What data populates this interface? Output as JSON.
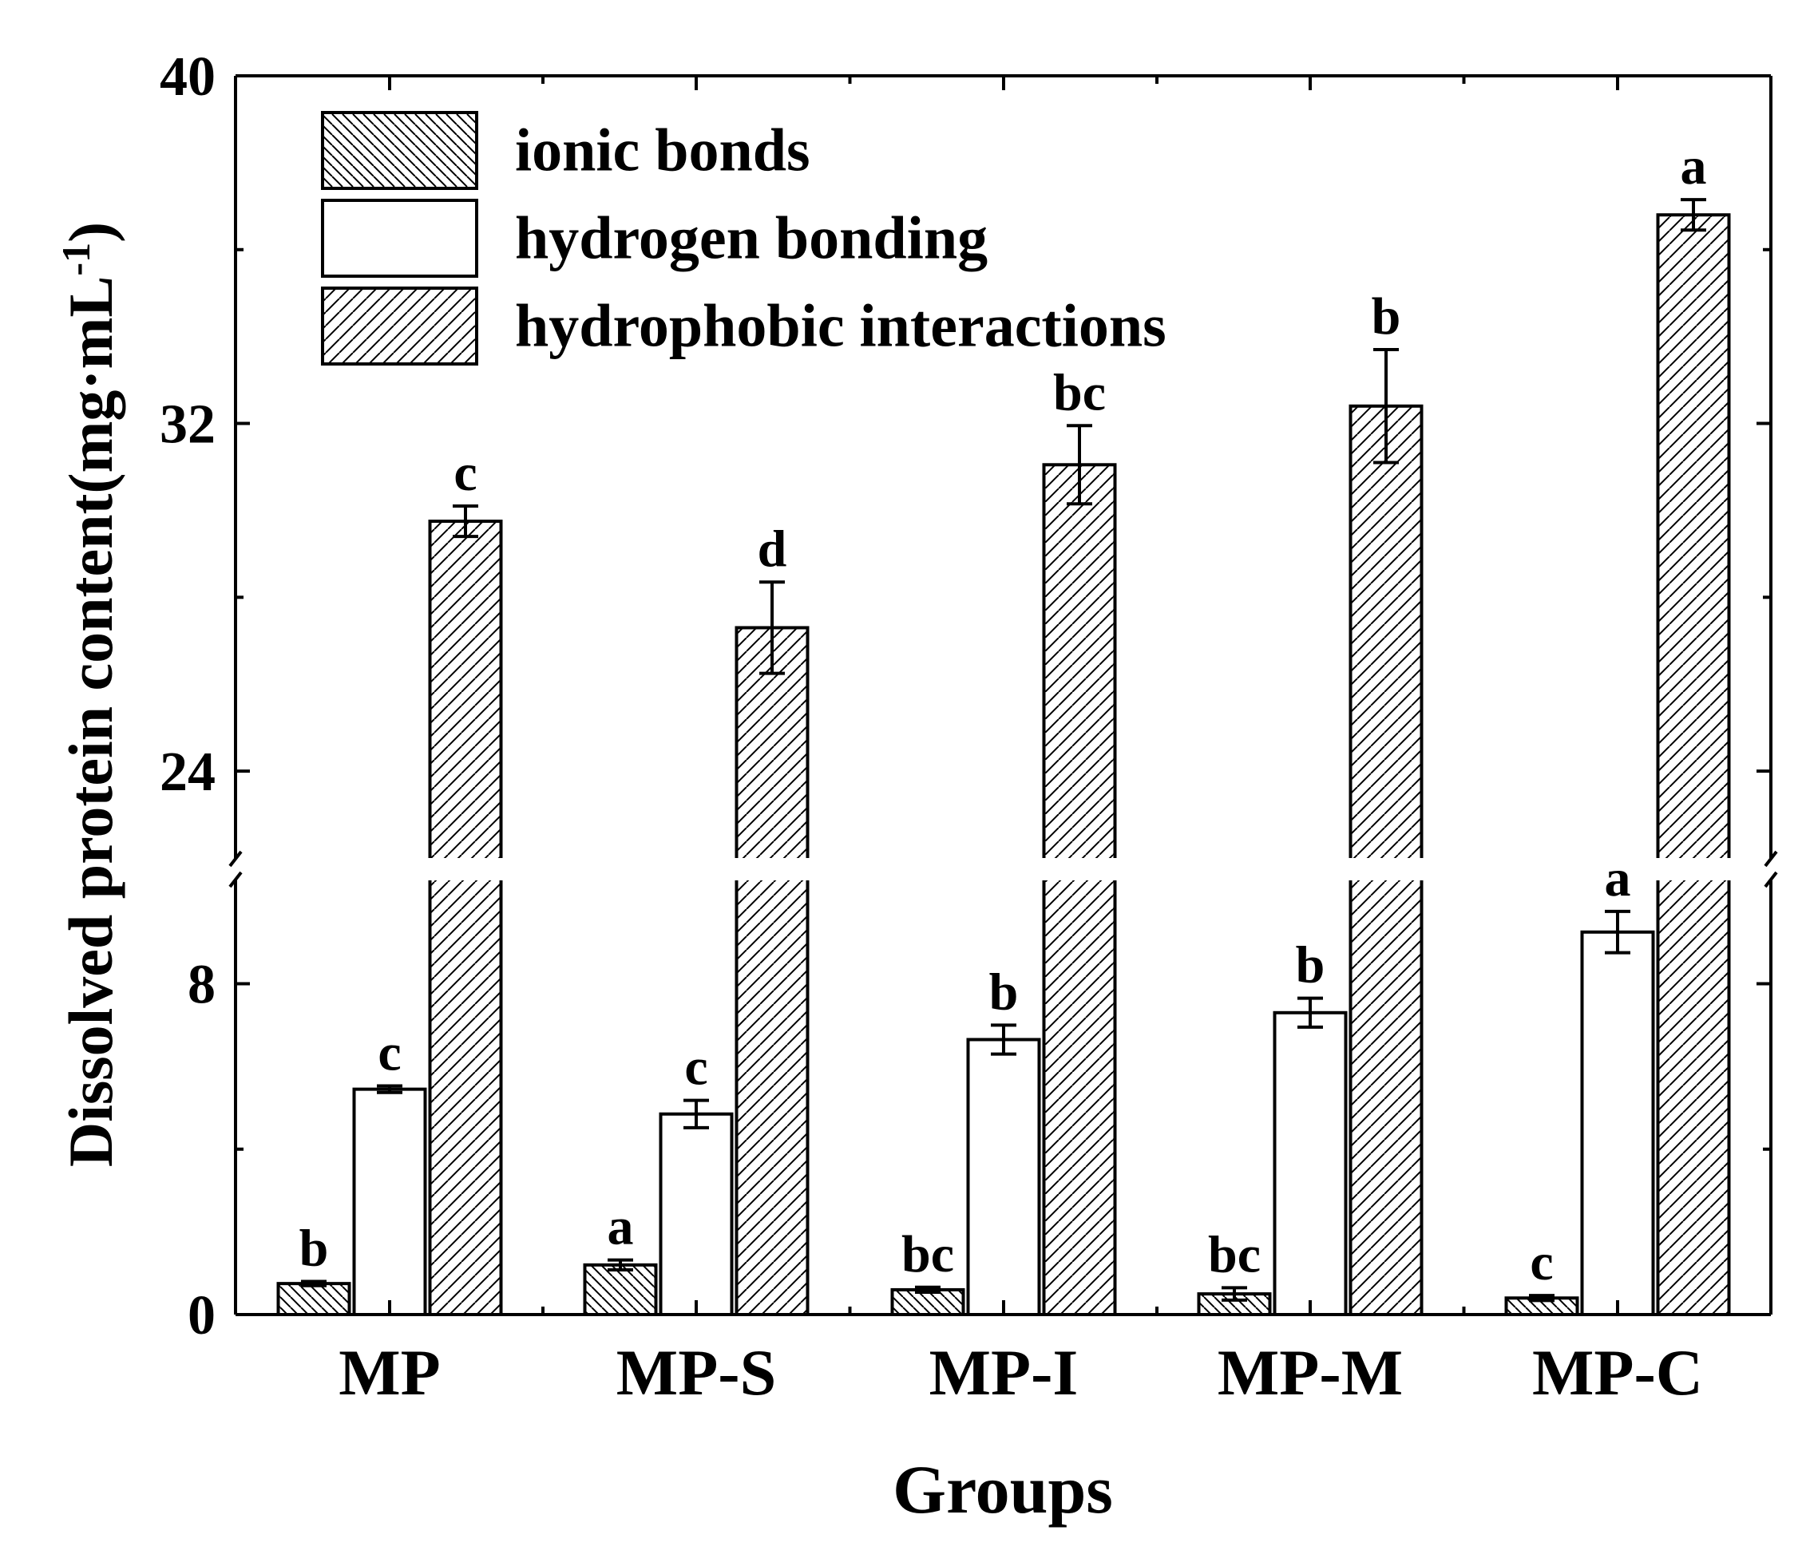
{
  "chart_data": {
    "type": "bar",
    "xlabel": "Groups",
    "ylabel_main": "Dissolved protein content(mg·mL",
    "ylabel_sup": "-1",
    "ylabel_close": ")",
    "categories": [
      "MP",
      "MP-S",
      "MP-I",
      "MP-M",
      "MP-C"
    ],
    "axis_break": {
      "lower": [
        0,
        10.5
      ],
      "upper": [
        22,
        40
      ]
    },
    "yticks_lower": [
      "0",
      "8"
    ],
    "yticks_upper": [
      "24",
      "32",
      "40"
    ],
    "series": [
      {
        "name": "ionic bonds",
        "pattern": "back-hatch",
        "values": [
          0.75,
          1.2,
          0.6,
          0.5,
          0.4
        ],
        "errors": [
          0.05,
          0.12,
          0.06,
          0.15,
          0.06
        ],
        "letters": [
          "b",
          "a",
          "bc",
          "bc",
          "c"
        ]
      },
      {
        "name": "hydrogen bonding",
        "pattern": "none",
        "values": [
          5.45,
          4.85,
          6.65,
          7.3,
          9.25
        ],
        "errors": [
          0.08,
          0.33,
          0.35,
          0.35,
          0.5
        ],
        "letters": [
          "c",
          "c",
          "b",
          "b",
          "a"
        ]
      },
      {
        "name": "hydrophobic interactions",
        "pattern": "forward-hatch",
        "values": [
          29.75,
          27.3,
          31.05,
          32.4,
          36.8
        ],
        "errors": [
          0.35,
          1.05,
          0.9,
          1.3,
          0.35
        ],
        "letters": [
          "c",
          "d",
          "bc",
          "b",
          "a"
        ]
      }
    ],
    "legend_position": "top-left",
    "grid": false
  }
}
